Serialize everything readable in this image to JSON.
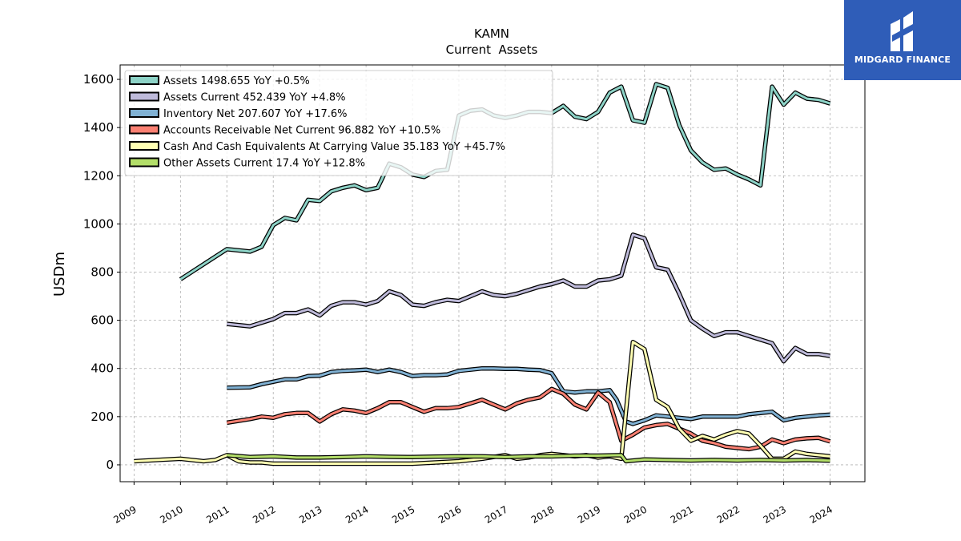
{
  "brand": {
    "name": "MIDGARD FINANCE",
    "bg_color": "#2f5db8"
  },
  "chart_data": {
    "type": "line",
    "title": "KAMN",
    "subtitle": "Current  Assets",
    "ylabel": "USDm",
    "xlabel": "",
    "xlim": [
      2008.7,
      2024.75
    ],
    "ylim": [
      -70,
      1660
    ],
    "yticks": [
      0,
      200,
      400,
      600,
      800,
      1000,
      1200,
      1400,
      1600
    ],
    "xticks": [
      2009,
      2010,
      2011,
      2012,
      2013,
      2014,
      2015,
      2016,
      2017,
      2018,
      2019,
      2020,
      2021,
      2022,
      2023,
      2024
    ],
    "grid": true,
    "legend_position": "top-left",
    "series": [
      {
        "name": "Assets  1498.655 YoY +0.5%",
        "color": "#8dd3c7",
        "points": [
          [
            2010,
            770
          ],
          [
            2011,
            895
          ],
          [
            2011.25,
            890
          ],
          [
            2011.5,
            885
          ],
          [
            2011.75,
            905
          ],
          [
            2012,
            995
          ],
          [
            2012.25,
            1025
          ],
          [
            2012.5,
            1015
          ],
          [
            2012.75,
            1100
          ],
          [
            2013,
            1095
          ],
          [
            2013.25,
            1135
          ],
          [
            2013.5,
            1150
          ],
          [
            2013.75,
            1160
          ],
          [
            2014,
            1140
          ],
          [
            2014.25,
            1150
          ],
          [
            2014.5,
            1250
          ],
          [
            2014.75,
            1235
          ],
          [
            2015,
            1205
          ],
          [
            2015.25,
            1195
          ],
          [
            2015.5,
            1220
          ],
          [
            2015.75,
            1225
          ],
          [
            2016,
            1450
          ],
          [
            2016.25,
            1470
          ],
          [
            2016.5,
            1475
          ],
          [
            2016.75,
            1450
          ],
          [
            2017,
            1440
          ],
          [
            2017.25,
            1450
          ],
          [
            2017.5,
            1465
          ],
          [
            2017.75,
            1465
          ],
          [
            2018,
            1460
          ],
          [
            2018.25,
            1490
          ],
          [
            2018.5,
            1445
          ],
          [
            2018.75,
            1435
          ],
          [
            2019,
            1465
          ],
          [
            2019.25,
            1545
          ],
          [
            2019.5,
            1570
          ],
          [
            2019.75,
            1430
          ],
          [
            2020,
            1420
          ],
          [
            2020.25,
            1580
          ],
          [
            2020.5,
            1565
          ],
          [
            2020.75,
            1410
          ],
          [
            2021,
            1305
          ],
          [
            2021.25,
            1255
          ],
          [
            2021.5,
            1225
          ],
          [
            2021.75,
            1230
          ],
          [
            2022,
            1205
          ],
          [
            2022.25,
            1185
          ],
          [
            2022.5,
            1160
          ],
          [
            2022.75,
            1570
          ],
          [
            2023,
            1495
          ],
          [
            2023.25,
            1545
          ],
          [
            2023.5,
            1520
          ],
          [
            2023.75,
            1515
          ],
          [
            2024,
            1500
          ]
        ]
      },
      {
        "name": "Assets Current  452.439 YoY +4.8%",
        "color": "#bebada",
        "points": [
          [
            2011,
            585
          ],
          [
            2011.5,
            575
          ],
          [
            2011.75,
            590
          ],
          [
            2012,
            605
          ],
          [
            2012.25,
            630
          ],
          [
            2012.5,
            630
          ],
          [
            2012.75,
            645
          ],
          [
            2013,
            620
          ],
          [
            2013.25,
            660
          ],
          [
            2013.5,
            675
          ],
          [
            2013.75,
            675
          ],
          [
            2014,
            665
          ],
          [
            2014.25,
            680
          ],
          [
            2014.5,
            720
          ],
          [
            2014.75,
            705
          ],
          [
            2015,
            665
          ],
          [
            2015.25,
            660
          ],
          [
            2015.5,
            675
          ],
          [
            2015.75,
            685
          ],
          [
            2016,
            680
          ],
          [
            2016.25,
            700
          ],
          [
            2016.5,
            720
          ],
          [
            2016.75,
            705
          ],
          [
            2017,
            700
          ],
          [
            2017.25,
            710
          ],
          [
            2017.5,
            725
          ],
          [
            2017.75,
            740
          ],
          [
            2018,
            750
          ],
          [
            2018.25,
            765
          ],
          [
            2018.5,
            740
          ],
          [
            2018.75,
            740
          ],
          [
            2019,
            765
          ],
          [
            2019.25,
            770
          ],
          [
            2019.5,
            785
          ],
          [
            2019.75,
            955
          ],
          [
            2020,
            940
          ],
          [
            2020.25,
            820
          ],
          [
            2020.5,
            810
          ],
          [
            2020.75,
            710
          ],
          [
            2021,
            600
          ],
          [
            2021.25,
            565
          ],
          [
            2021.5,
            535
          ],
          [
            2021.75,
            550
          ],
          [
            2022,
            550
          ],
          [
            2022.25,
            535
          ],
          [
            2022.5,
            520
          ],
          [
            2022.75,
            505
          ],
          [
            2023,
            430
          ],
          [
            2023.25,
            485
          ],
          [
            2023.5,
            460
          ],
          [
            2023.75,
            460
          ],
          [
            2024,
            452
          ]
        ]
      },
      {
        "name": "Inventory Net  207.607 YoY +17.6%",
        "color": "#80b1d3",
        "points": [
          [
            2011,
            320
          ],
          [
            2011.5,
            322
          ],
          [
            2011.75,
            335
          ],
          [
            2012,
            345
          ],
          [
            2012.25,
            355
          ],
          [
            2012.5,
            355
          ],
          [
            2012.75,
            368
          ],
          [
            2013,
            370
          ],
          [
            2013.25,
            385
          ],
          [
            2013.5,
            390
          ],
          [
            2013.75,
            392
          ],
          [
            2014,
            395
          ],
          [
            2014.25,
            385
          ],
          [
            2014.5,
            395
          ],
          [
            2014.75,
            385
          ],
          [
            2015,
            368
          ],
          [
            2015.25,
            372
          ],
          [
            2015.5,
            372
          ],
          [
            2015.75,
            375
          ],
          [
            2016,
            390
          ],
          [
            2016.25,
            395
          ],
          [
            2016.5,
            400
          ],
          [
            2016.75,
            400
          ],
          [
            2017,
            398
          ],
          [
            2017.25,
            398
          ],
          [
            2017.5,
            395
          ],
          [
            2017.75,
            393
          ],
          [
            2018,
            380
          ],
          [
            2018.25,
            305
          ],
          [
            2018.5,
            300
          ],
          [
            2018.75,
            305
          ],
          [
            2019,
            305
          ],
          [
            2019.25,
            310
          ],
          [
            2019.4,
            270
          ],
          [
            2019.6,
            180
          ],
          [
            2019.75,
            170
          ],
          [
            2020,
            185
          ],
          [
            2020.25,
            205
          ],
          [
            2020.5,
            200
          ],
          [
            2020.75,
            195
          ],
          [
            2021,
            190
          ],
          [
            2021.25,
            200
          ],
          [
            2021.5,
            200
          ],
          [
            2021.75,
            200
          ],
          [
            2022,
            200
          ],
          [
            2022.25,
            210
          ],
          [
            2022.5,
            215
          ],
          [
            2022.75,
            220
          ],
          [
            2023,
            185
          ],
          [
            2023.25,
            195
          ],
          [
            2023.5,
            200
          ],
          [
            2023.75,
            205
          ],
          [
            2024,
            208
          ]
        ]
      },
      {
        "name": "Accounts Receivable Net Current  96.882 YoY +10.5%",
        "color": "#fb8072",
        "points": [
          [
            2011,
            175
          ],
          [
            2011.5,
            190
          ],
          [
            2011.75,
            200
          ],
          [
            2012,
            195
          ],
          [
            2012.25,
            210
          ],
          [
            2012.5,
            215
          ],
          [
            2012.75,
            215
          ],
          [
            2013,
            180
          ],
          [
            2013.25,
            210
          ],
          [
            2013.5,
            230
          ],
          [
            2013.75,
            225
          ],
          [
            2014,
            215
          ],
          [
            2014.25,
            235
          ],
          [
            2014.5,
            260
          ],
          [
            2014.75,
            260
          ],
          [
            2015,
            240
          ],
          [
            2015.25,
            220
          ],
          [
            2015.5,
            235
          ],
          [
            2015.75,
            235
          ],
          [
            2016,
            240
          ],
          [
            2016.25,
            255
          ],
          [
            2016.5,
            270
          ],
          [
            2016.75,
            250
          ],
          [
            2017,
            230
          ],
          [
            2017.25,
            255
          ],
          [
            2017.5,
            270
          ],
          [
            2017.75,
            280
          ],
          [
            2018,
            315
          ],
          [
            2018.25,
            295
          ],
          [
            2018.5,
            250
          ],
          [
            2018.75,
            230
          ],
          [
            2019,
            300
          ],
          [
            2019.25,
            260
          ],
          [
            2019.5,
            100
          ],
          [
            2019.75,
            125
          ],
          [
            2020,
            155
          ],
          [
            2020.25,
            165
          ],
          [
            2020.5,
            170
          ],
          [
            2020.75,
            150
          ],
          [
            2021,
            130
          ],
          [
            2021.25,
            100
          ],
          [
            2021.5,
            90
          ],
          [
            2021.75,
            75
          ],
          [
            2022,
            70
          ],
          [
            2022.25,
            65
          ],
          [
            2022.5,
            75
          ],
          [
            2022.75,
            105
          ],
          [
            2023,
            90
          ],
          [
            2023.25,
            105
          ],
          [
            2023.5,
            110
          ],
          [
            2023.75,
            112
          ],
          [
            2024,
            97
          ]
        ]
      },
      {
        "name": "Cash And Cash Equivalents At Carrying Value  35.183 YoY +45.7%",
        "color": "#ffffb3",
        "points": [
          [
            2009,
            15
          ],
          [
            2009.5,
            20
          ],
          [
            2010,
            25
          ],
          [
            2010.5,
            15
          ],
          [
            2010.75,
            20
          ],
          [
            2011,
            40
          ],
          [
            2011.25,
            15
          ],
          [
            2011.5,
            10
          ],
          [
            2011.75,
            10
          ],
          [
            2012,
            5
          ],
          [
            2012.5,
            5
          ],
          [
            2013,
            5
          ],
          [
            2013.5,
            5
          ],
          [
            2014,
            5
          ],
          [
            2014.5,
            5
          ],
          [
            2015,
            5
          ],
          [
            2015.5,
            10
          ],
          [
            2016,
            15
          ],
          [
            2016.5,
            25
          ],
          [
            2017,
            40
          ],
          [
            2017.25,
            25
          ],
          [
            2017.5,
            30
          ],
          [
            2017.75,
            40
          ],
          [
            2018,
            45
          ],
          [
            2018.5,
            35
          ],
          [
            2018.75,
            40
          ],
          [
            2019,
            30
          ],
          [
            2019.25,
            35
          ],
          [
            2019.5,
            25
          ],
          [
            2019.75,
            510
          ],
          [
            2020,
            480
          ],
          [
            2020.25,
            270
          ],
          [
            2020.5,
            240
          ],
          [
            2020.75,
            150
          ],
          [
            2021,
            100
          ],
          [
            2021.25,
            120
          ],
          [
            2021.5,
            105
          ],
          [
            2021.75,
            125
          ],
          [
            2022,
            140
          ],
          [
            2022.25,
            130
          ],
          [
            2022.5,
            80
          ],
          [
            2022.75,
            25
          ],
          [
            2023,
            25
          ],
          [
            2023.25,
            55
          ],
          [
            2023.5,
            45
          ],
          [
            2023.75,
            40
          ],
          [
            2024,
            35
          ]
        ]
      },
      {
        "name": "Other Assets Current  17.4 YoY +12.8%",
        "color": "#b3de69",
        "points": [
          [
            2011,
            40
          ],
          [
            2011.5,
            32
          ],
          [
            2012,
            35
          ],
          [
            2012.5,
            30
          ],
          [
            2013,
            30
          ],
          [
            2013.5,
            32
          ],
          [
            2014,
            35
          ],
          [
            2014.5,
            33
          ],
          [
            2015,
            32
          ],
          [
            2015.5,
            34
          ],
          [
            2016,
            35
          ],
          [
            2016.5,
            35
          ],
          [
            2017,
            32
          ],
          [
            2017.5,
            35
          ],
          [
            2018,
            35
          ],
          [
            2018.5,
            38
          ],
          [
            2019,
            38
          ],
          [
            2019.5,
            40
          ],
          [
            2019.6,
            15
          ],
          [
            2020,
            22
          ],
          [
            2020.5,
            20
          ],
          [
            2021,
            18
          ],
          [
            2021.5,
            20
          ],
          [
            2022,
            18
          ],
          [
            2022.5,
            20
          ],
          [
            2023,
            18
          ],
          [
            2023.5,
            20
          ],
          [
            2024,
            17
          ]
        ]
      }
    ]
  }
}
